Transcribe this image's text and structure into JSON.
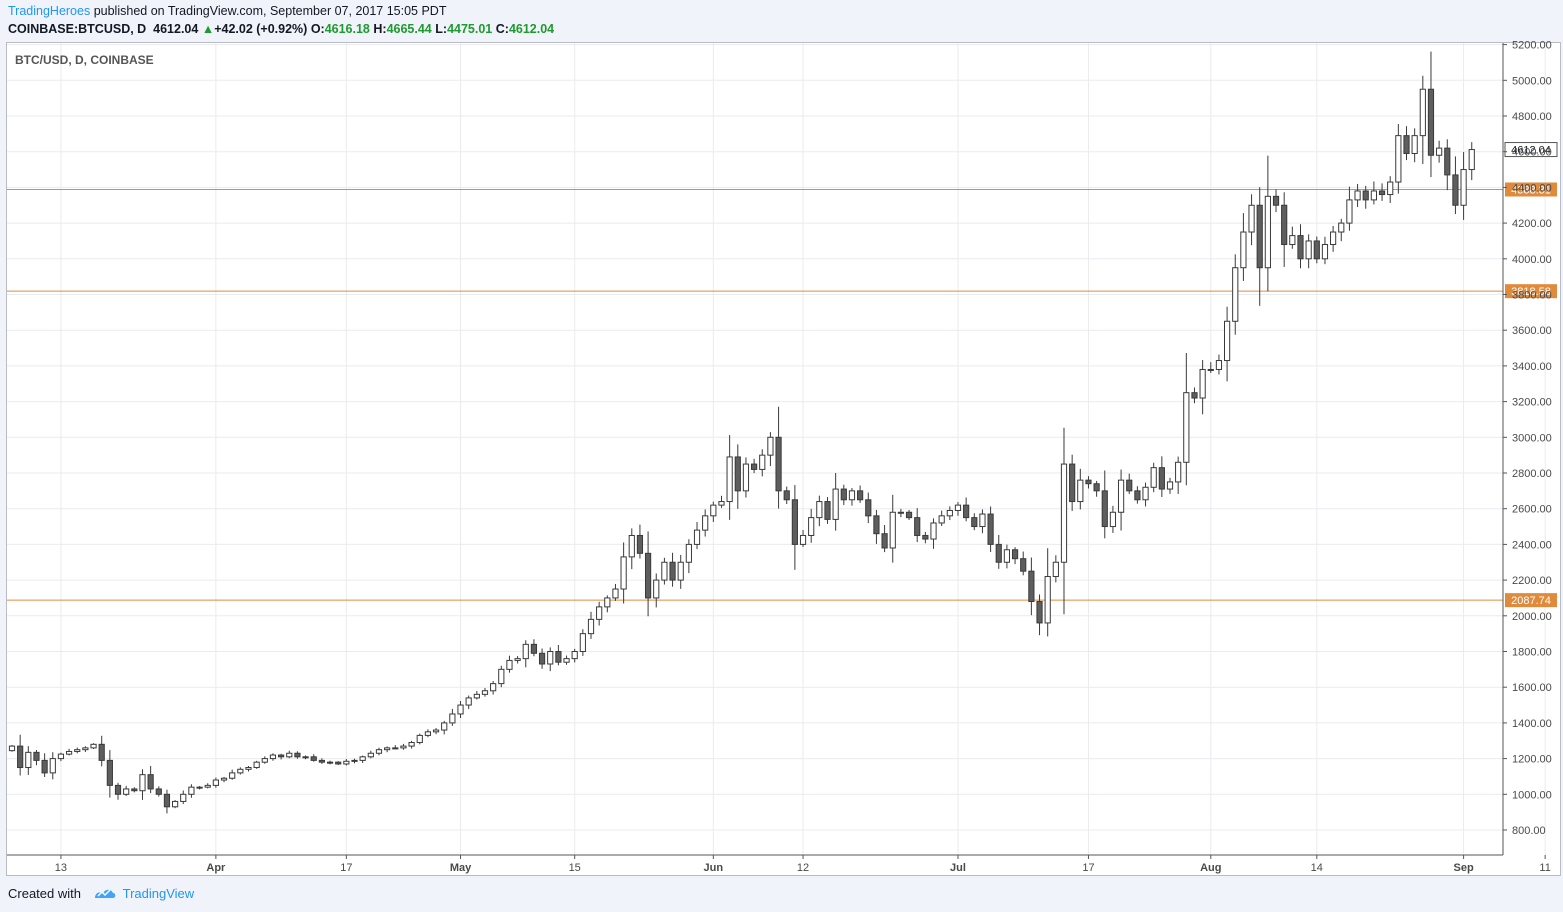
{
  "header": {
    "author": "TradingHeroes",
    "published_text": "published on TradingView.com, September 07, 2017 15:05 PDT",
    "symbol_line": "COINBASE:BTCUSD, D",
    "last_price": "4612.04",
    "change_arrow": "▲",
    "change": "+42.02 (+0.92%)",
    "o_label": "O:",
    "o_value": "4616.18",
    "h_label": "H:",
    "h_value": "4665.44",
    "l_label": "L:",
    "l_value": "4475.01",
    "c_label": "C:",
    "c_value": "4612.04"
  },
  "footer": {
    "created_with": "Created with",
    "brand": "TradingView"
  },
  "chart_data": {
    "type": "candlestick",
    "title": "BTC/USD, D, COINBASE",
    "ylim": [
      600,
      5250
    ],
    "y_ticks": [
      "800.00",
      "1000.00",
      "1200.00",
      "1400.00",
      "1600.00",
      "1800.00",
      "2000.00",
      "2200.00",
      "2400.00",
      "2600.00",
      "2800.00",
      "3000.00",
      "3200.00",
      "3400.00",
      "3600.00",
      "3800.00",
      "4000.00",
      "4200.00",
      "4400.00",
      "4600.00",
      "4800.00",
      "5000.00",
      "5200.00"
    ],
    "x_ticks": [
      {
        "label": "13",
        "date": "2017-03-13"
      },
      {
        "label": "Apr",
        "date": "2017-04-01"
      },
      {
        "label": "17",
        "date": "2017-04-17"
      },
      {
        "label": "May",
        "date": "2017-05-01"
      },
      {
        "label": "15",
        "date": "2017-05-15"
      },
      {
        "label": "Jun",
        "date": "2017-06-01"
      },
      {
        "label": "12",
        "date": "2017-06-12"
      },
      {
        "label": "Jul",
        "date": "2017-07-01"
      },
      {
        "label": "17",
        "date": "2017-07-17"
      },
      {
        "label": "Aug",
        "date": "2017-08-01"
      },
      {
        "label": "14",
        "date": "2017-08-14"
      },
      {
        "label": "Sep",
        "date": "2017-09-01"
      },
      {
        "label": "11",
        "date": "2017-09-11"
      }
    ],
    "start_date": "2017-03-07",
    "levels": [
      {
        "value": 4388.31,
        "label": "4388.31",
        "color": "#e08a3c"
      },
      {
        "value": 3818.58,
        "label": "3818.58",
        "color": "#e08a3c"
      },
      {
        "value": 2087.74,
        "label": "2087.74",
        "color": "#e08a3c"
      }
    ],
    "last_price": {
      "value": 4612.04,
      "label": "4612.04"
    },
    "colors": {
      "up": "#ffffff",
      "down": "#5e5e5e",
      "border": "#3a3a3a",
      "grid": "#e9ebef"
    },
    "closes": [
      1270,
      1150,
      1235,
      1190,
      1120,
      1200,
      1225,
      1240,
      1250,
      1260,
      1280,
      1190,
      1050,
      1000,
      1030,
      1020,
      1110,
      1030,
      1000,
      930,
      960,
      1000,
      1040,
      1040,
      1050,
      1080,
      1090,
      1120,
      1140,
      1150,
      1180,
      1200,
      1220,
      1210,
      1230,
      1210,
      1210,
      1190,
      1180,
      1180,
      1170,
      1185,
      1190,
      1210,
      1230,
      1250,
      1260,
      1260,
      1270,
      1290,
      1330,
      1350,
      1360,
      1400,
      1450,
      1500,
      1540,
      1560,
      1580,
      1620,
      1700,
      1750,
      1760,
      1840,
      1790,
      1730,
      1800,
      1740,
      1760,
      1800,
      1900,
      1980,
      2050,
      2100,
      2150,
      2330,
      2450,
      2350,
      2100,
      2200,
      2300,
      2200,
      2300,
      2400,
      2480,
      2560,
      2620,
      2640,
      2890,
      2700,
      2850,
      2820,
      2900,
      3000,
      2700,
      2650,
      2400,
      2450,
      2550,
      2640,
      2540,
      2710,
      2650,
      2700,
      2650,
      2560,
      2460,
      2380,
      2580,
      2580,
      2550,
      2450,
      2430,
      2520,
      2560,
      2590,
      2620,
      2550,
      2500,
      2570,
      2400,
      2300,
      2370,
      2320,
      2250,
      2080,
      1960,
      2220,
      2300,
      2850,
      2640,
      2760,
      2740,
      2700,
      2500,
      2580,
      2760,
      2700,
      2650,
      2720,
      2830,
      2710,
      2750,
      2860,
      3250,
      3220,
      3380,
      3380,
      3430,
      3650,
      3950,
      4150,
      4300,
      3950,
      4350,
      4300,
      4080,
      4130,
      4000,
      4100,
      4000,
      4080,
      4150,
      4200,
      4330,
      4380,
      4330,
      4380,
      4360,
      4430,
      4690,
      4590,
      4690,
      4950,
      4580,
      4620,
      4470,
      4300,
      4500,
      4612.04
    ]
  }
}
